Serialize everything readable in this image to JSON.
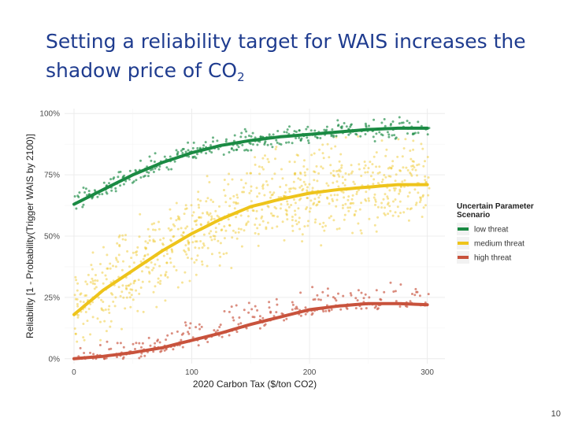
{
  "slide": {
    "title_main": "Setting a reliability target for WAIS increases the shadow price of CO",
    "title_subscript": "2",
    "page_number": "10"
  },
  "colors": {
    "title": "#1f3c8f",
    "low_threat": "#1a8a43",
    "medium_threat": "#eec41b",
    "high_threat": "#c8523c",
    "grid": "#ececec",
    "panel": "#ffffff",
    "axis_text": "#4d4d4d"
  },
  "chart_data": {
    "type": "scatter",
    "title": "",
    "xlabel": "2020 Carbon Tax ($/ton CO2)",
    "ylabel": "Reliability [1 - Probability(Trigger WAIS by 2100)]",
    "xlim": [
      -8,
      315
    ],
    "ylim": [
      -0.02,
      1.02
    ],
    "x_ticks": [
      0,
      100,
      200,
      300
    ],
    "x_tick_labels": [
      "0",
      "100",
      "200",
      "300"
    ],
    "y_ticks": [
      0,
      0.25,
      0.5,
      0.75,
      1.0
    ],
    "y_tick_labels": [
      "0%",
      "25%",
      "50%",
      "75%",
      "100%"
    ],
    "grid": true,
    "legend": {
      "title": "Uncertain Parameter Scenario",
      "position": "right",
      "entries": [
        "low threat",
        "medium threat",
        "high threat"
      ]
    },
    "series": [
      {
        "name": "low threat",
        "trend_x": [
          0,
          25,
          50,
          75,
          100,
          125,
          150,
          175,
          200,
          225,
          250,
          275,
          300
        ],
        "trend_y": [
          0.63,
          0.69,
          0.75,
          0.8,
          0.84,
          0.87,
          0.89,
          0.905,
          0.915,
          0.925,
          0.935,
          0.94,
          0.94
        ],
        "scatter_spread": 0.06,
        "points_per_x_step": 4
      },
      {
        "name": "medium threat",
        "trend_x": [
          0,
          25,
          50,
          75,
          100,
          125,
          150,
          175,
          200,
          225,
          250,
          275,
          300
        ],
        "trend_y": [
          0.18,
          0.28,
          0.36,
          0.44,
          0.51,
          0.57,
          0.62,
          0.65,
          0.675,
          0.69,
          0.7,
          0.71,
          0.71
        ],
        "scatter_spread": 0.26,
        "points_per_x_step": 10
      },
      {
        "name": "high threat",
        "trend_x": [
          0,
          25,
          50,
          75,
          100,
          125,
          150,
          175,
          200,
          225,
          250,
          275,
          300
        ],
        "trend_y": [
          0.0,
          0.01,
          0.025,
          0.045,
          0.075,
          0.105,
          0.14,
          0.17,
          0.2,
          0.215,
          0.225,
          0.225,
          0.22
        ],
        "scatter_spread": 0.12,
        "points_per_x_step": 3
      }
    ]
  }
}
